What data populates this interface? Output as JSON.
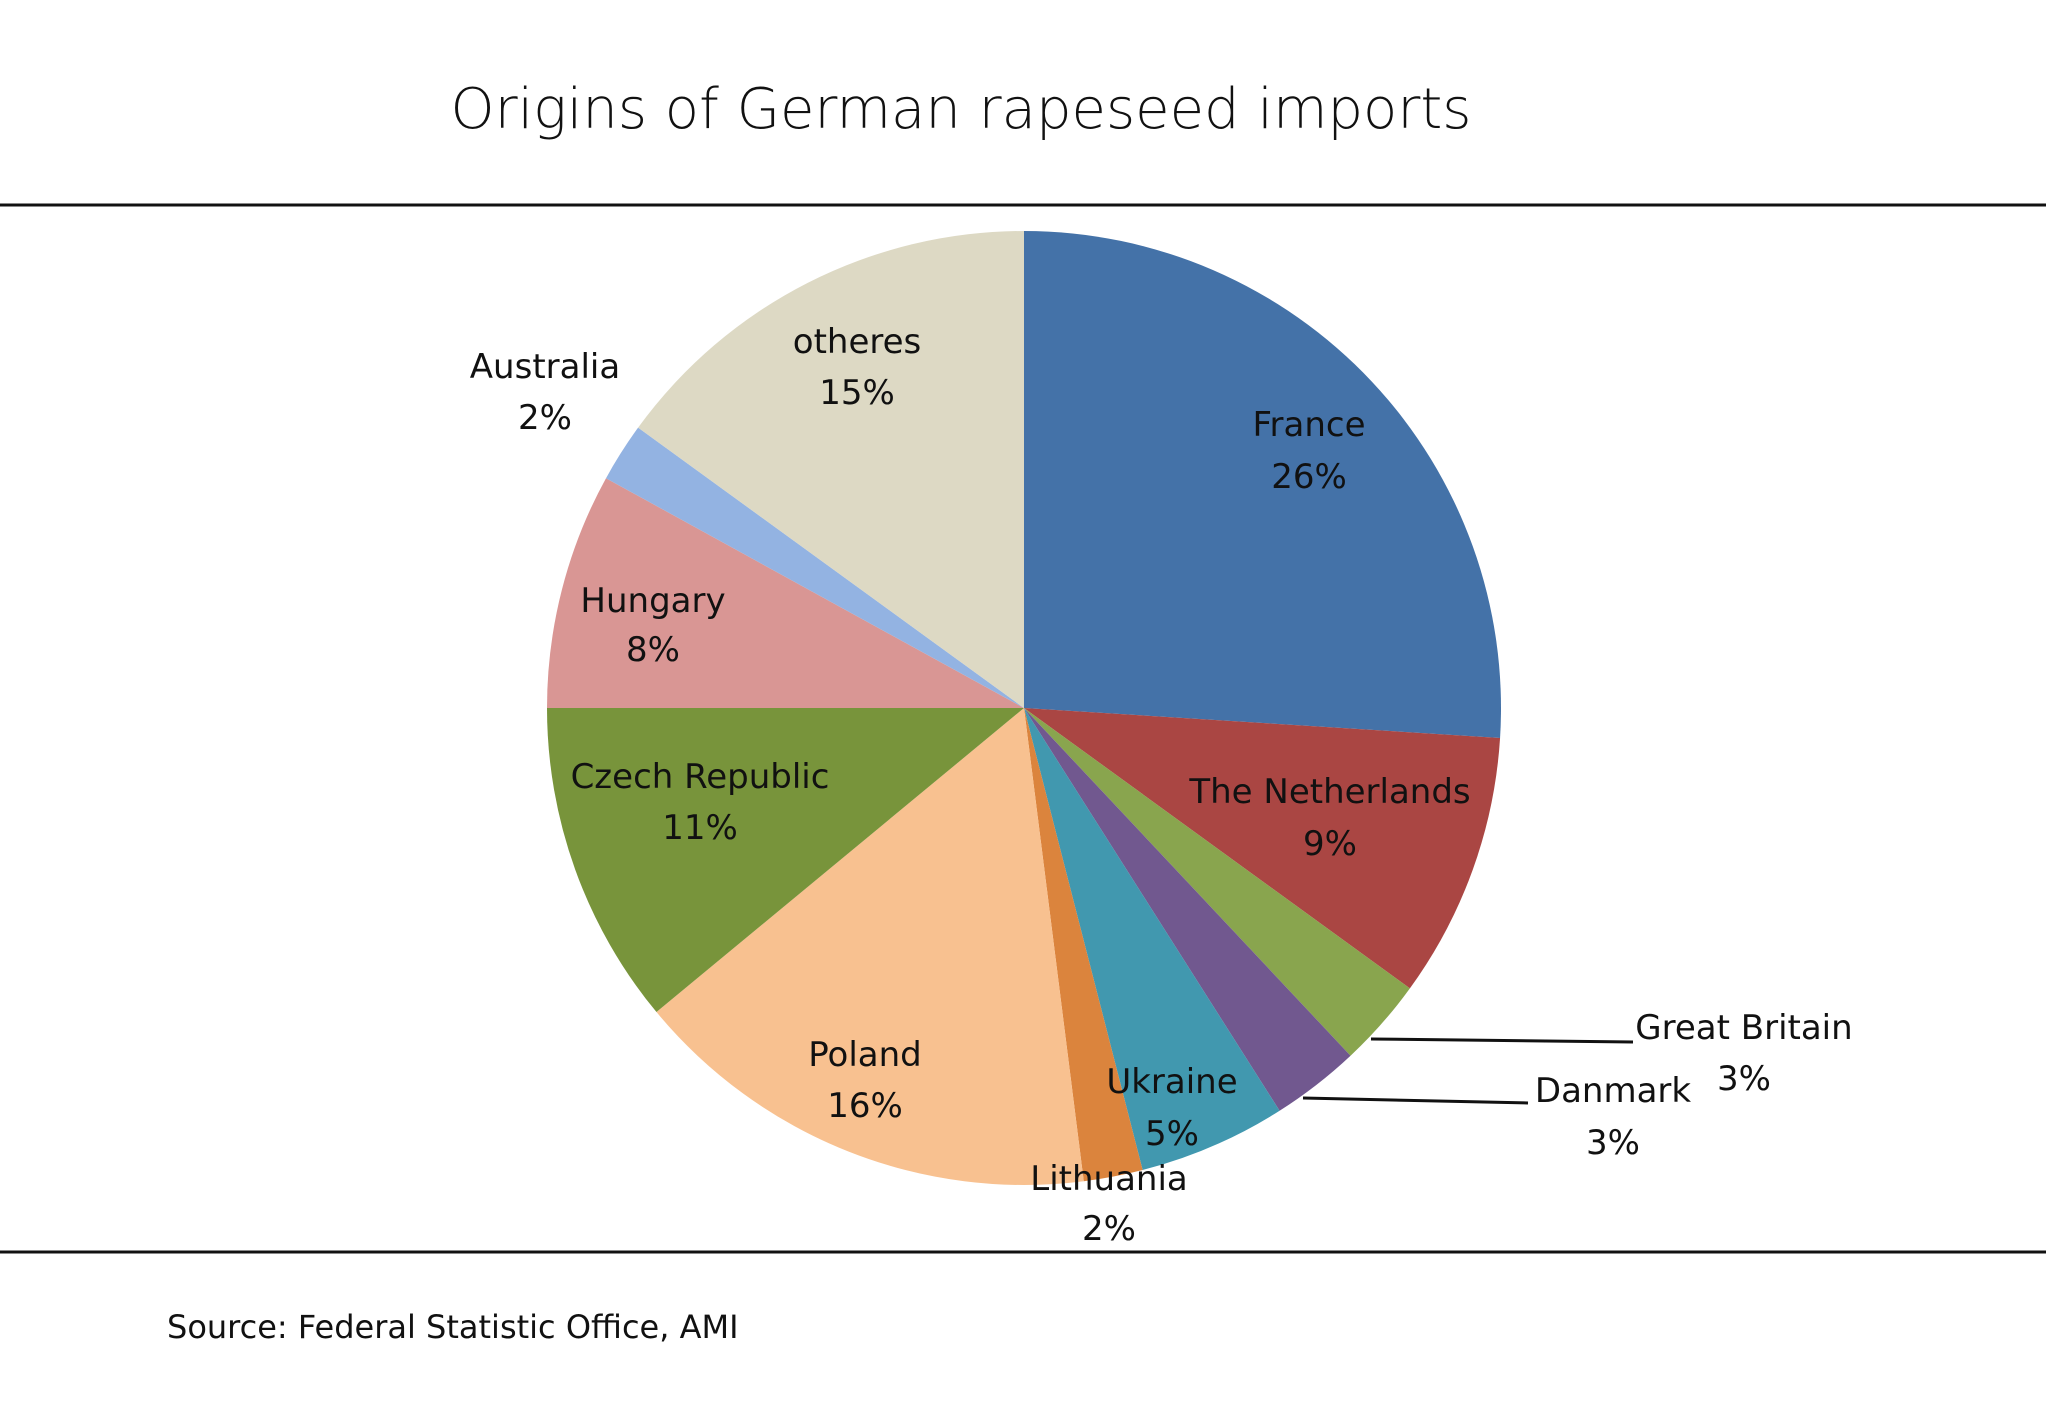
{
  "chart_data": {
    "type": "pie",
    "title": "Origins of German rapeseed imports",
    "source": "Source: Federal Statistic Office, AMI",
    "start_angle": "12 o'clock, clockwise",
    "slices": [
      {
        "label": "France",
        "value": 26,
        "pct": "26%",
        "color": "#4472A8"
      },
      {
        "label": "The Netherlands",
        "value": 9,
        "pct": "9%",
        "color": "#AA4643"
      },
      {
        "label": "Great Britain",
        "value": 3,
        "pct": "3%",
        "color": "#89A54E"
      },
      {
        "label": "Danmark",
        "value": 3,
        "pct": "3%",
        "color": "#71588F"
      },
      {
        "label": "Ukraine",
        "value": 5,
        "pct": "5%",
        "color": "#4198AF"
      },
      {
        "label": "Lithuania",
        "value": 2,
        "pct": "2%",
        "color": "#DB843D"
      },
      {
        "label": "Poland",
        "value": 16,
        "pct": "16%",
        "color": "#F8C190"
      },
      {
        "label": "Czech Republic",
        "value": 11,
        "pct": "11%",
        "color": "#78943B"
      },
      {
        "label": "Hungary",
        "value": 8,
        "pct": "8%",
        "color": "#D99694"
      },
      {
        "label": "Australia",
        "value": 2,
        "pct": "2%",
        "color": "#93B3E2"
      },
      {
        "label": "otheres",
        "value": 15,
        "pct": "15%",
        "color": "#DDD9C4"
      }
    ]
  }
}
